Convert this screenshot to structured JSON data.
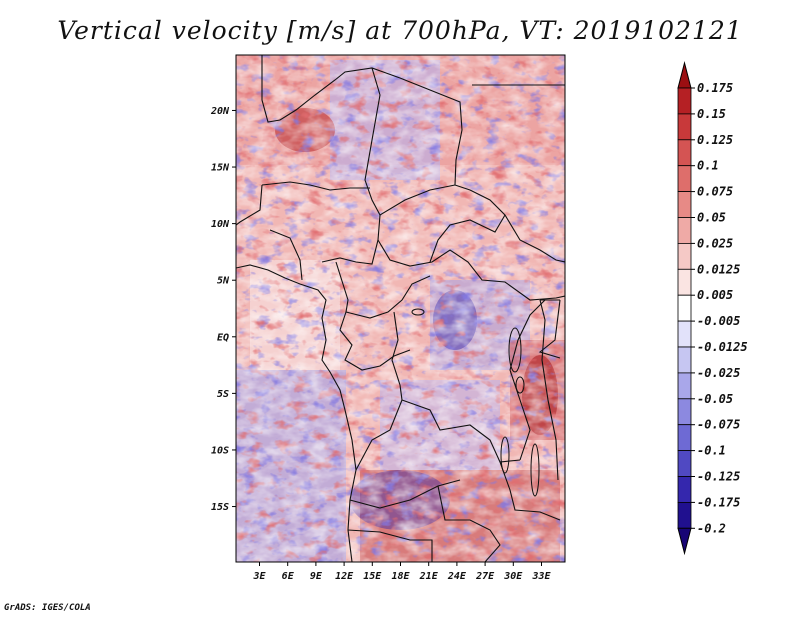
{
  "title": "Vertical velocity [m/s] at 700hPa, VT: 2019102121",
  "credit": "GrADS: IGES/COLA",
  "map": {
    "lat_labels": [
      "20N",
      "15N",
      "10N",
      "5N",
      "EQ",
      "5S",
      "10S",
      "15S"
    ],
    "lat_values": [
      20,
      15,
      10,
      5,
      0,
      -5,
      -10,
      -15
    ],
    "lon_labels": [
      "3E",
      "6E",
      "9E",
      "12E",
      "15E",
      "18E",
      "21E",
      "24E",
      "27E",
      "30E",
      "33E"
    ],
    "lon_values": [
      3,
      6,
      9,
      12,
      15,
      18,
      21,
      24,
      27,
      30,
      33
    ],
    "lon_range": [
      0.5,
      35.5
    ],
    "lat_range": [
      -19.9,
      24.9
    ]
  },
  "colorbar": {
    "labels": [
      "0.175",
      "0.15",
      "0.125",
      "0.1",
      "0.075",
      "0.05",
      "0.025",
      "0.0125",
      "0.005",
      "-0.005",
      "-0.0125",
      "-0.025",
      "-0.05",
      "-0.075",
      "-0.1",
      "-0.125",
      "-0.175",
      "-0.2"
    ],
    "colors": [
      "#9b0f12",
      "#b52024",
      "#c8393a",
      "#d45453",
      "#de6e6b",
      "#e78a86",
      "#efaaa6",
      "#f5c9c6",
      "#fae4e2",
      "#ffffff",
      "#e2e2fa",
      "#c6c6f2",
      "#a9a7ea",
      "#8c89e0",
      "#6e6ad4",
      "#5049c2",
      "#3427ad",
      "#20108f",
      "#170475"
    ]
  }
}
